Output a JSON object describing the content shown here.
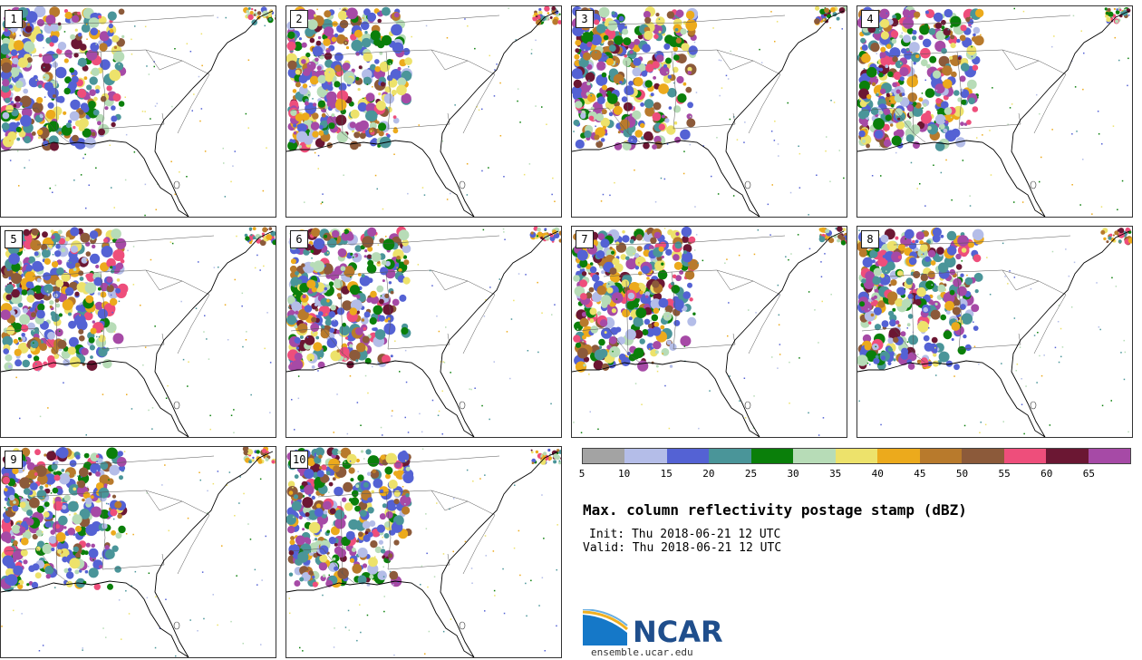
{
  "panels": [
    {
      "label": "1"
    },
    {
      "label": "2"
    },
    {
      "label": "3"
    },
    {
      "label": "4"
    },
    {
      "label": "5"
    },
    {
      "label": "6"
    },
    {
      "label": "7"
    },
    {
      "label": "8"
    },
    {
      "label": "9"
    },
    {
      "label": "10"
    }
  ],
  "colorbar": {
    "colors": [
      "#a3a3a3",
      "#b4bde8",
      "#5462d4",
      "#4a9599",
      "#0a7f0a",
      "#b7dcb7",
      "#ede26b",
      "#ecaa1c",
      "#b87a2c",
      "#8c5a3a",
      "#ee4e7b",
      "#6b1733",
      "#a64aa6"
    ],
    "ticks": [
      "5",
      "10",
      "15",
      "20",
      "25",
      "30",
      "35",
      "40",
      "45",
      "50",
      "55",
      "60",
      "65"
    ]
  },
  "title": "Max. column reflectivity postage stamp (dBZ)",
  "init": "Init: Thu 2018-06-21 12 UTC",
  "valid": "Valid: Thu 2018-06-21 12 UTC",
  "logo_text": "NCAR",
  "site": "ensemble.ucar.edu"
}
